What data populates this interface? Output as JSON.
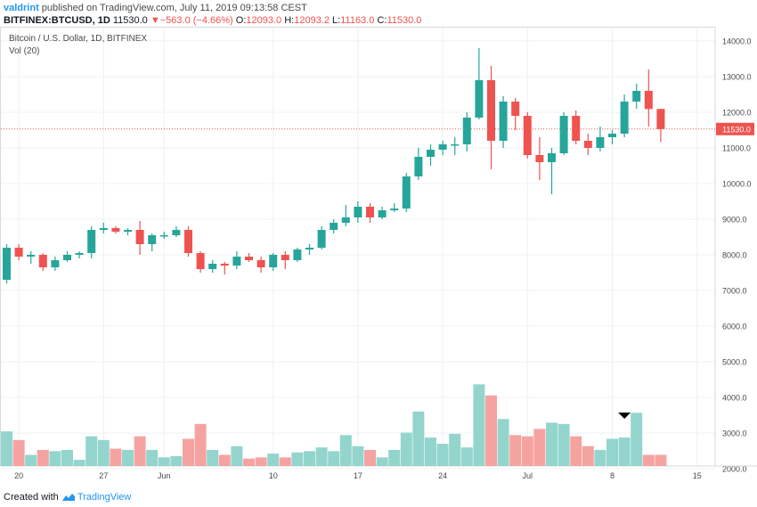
{
  "header": {
    "author": "valdrint",
    "published": "published on TradingView.com, July 11, 2019 09:13:58 CEST",
    "symbol": "BITFINEX:BTCUSD, 1D",
    "last": "11530.0",
    "change": "−563.0 (−4.66%)",
    "o_label": "O:",
    "o_value": "12093.0",
    "h_label": "H:",
    "h_value": "12093.2",
    "l_label": "L:",
    "l_value": "11163.0",
    "c_label": "C:",
    "c_value": "11530.0"
  },
  "legend": {
    "title": "Bitcoin / U.S. Dollar, 1D, BITFINEX",
    "volume": "Vol (20)"
  },
  "footer": {
    "created_with": "Created with",
    "brand": "TradingView"
  },
  "colors": {
    "up": "#26a69a",
    "down": "#ef5350",
    "vol_up": "#93d5cd",
    "vol_down": "#f5a3a1",
    "grid": "#edf0f5",
    "axis_text": "#4a4a4a",
    "price_line": "#ef5350",
    "marker": "#000000"
  },
  "chart_data": {
    "type": "candlestick",
    "title": "Bitcoin / U.S. Dollar, 1D, BITFINEX",
    "price_range": [
      6000,
      14400
    ],
    "volume_range": [
      1200,
      5700
    ],
    "y_ticks": [
      14000,
      13000,
      12000,
      11000,
      10000,
      9000,
      8000,
      7000,
      6000,
      5000,
      4000,
      3000,
      2000
    ],
    "y_tick_labels": [
      "14000.0",
      "13000.0",
      "12000.0",
      "11000.0",
      "10000.0",
      "9000.0",
      "8000.0",
      "7000.0",
      "6000.0",
      "5000.0",
      "4000.0",
      "3000.0",
      "2000.0"
    ],
    "x_ticks": [
      {
        "index": 1,
        "label": "20"
      },
      {
        "index": 8,
        "label": "27"
      },
      {
        "index": 13,
        "label": "Jun"
      },
      {
        "index": 22,
        "label": "10"
      },
      {
        "index": 29,
        "label": "17"
      },
      {
        "index": 36,
        "label": "24"
      },
      {
        "index": 43,
        "label": "Jul"
      },
      {
        "index": 50,
        "label": "8"
      },
      {
        "index": 57,
        "label": "15"
      }
    ],
    "last_price": 11530,
    "last_price_label": "11530.0",
    "marker_index": 51,
    "candles": [
      {
        "o": 7300,
        "h": 8300,
        "l": 7200,
        "c": 8200,
        "v": 2600
      },
      {
        "o": 8200,
        "h": 8300,
        "l": 7850,
        "c": 7950,
        "v": 2250
      },
      {
        "o": 7950,
        "h": 8100,
        "l": 7750,
        "c": 8000,
        "v": 1650
      },
      {
        "o": 8000,
        "h": 8050,
        "l": 7550,
        "c": 7650,
        "v": 1850
      },
      {
        "o": 7650,
        "h": 7950,
        "l": 7550,
        "c": 7850,
        "v": 1800
      },
      {
        "o": 7850,
        "h": 8100,
        "l": 7800,
        "c": 8000,
        "v": 1850
      },
      {
        "o": 8000,
        "h": 8100,
        "l": 7900,
        "c": 8050,
        "v": 1450
      },
      {
        "o": 8050,
        "h": 8800,
        "l": 7900,
        "c": 8700,
        "v": 2400
      },
      {
        "o": 8700,
        "h": 8900,
        "l": 8600,
        "c": 8750,
        "v": 2250
      },
      {
        "o": 8750,
        "h": 8800,
        "l": 8600,
        "c": 8650,
        "v": 1900
      },
      {
        "o": 8650,
        "h": 8750,
        "l": 8550,
        "c": 8700,
        "v": 1850
      },
      {
        "o": 8700,
        "h": 8950,
        "l": 8000,
        "c": 8300,
        "v": 2400
      },
      {
        "o": 8300,
        "h": 8600,
        "l": 8100,
        "c": 8550,
        "v": 1850
      },
      {
        "o": 8550,
        "h": 8650,
        "l": 8450,
        "c": 8550,
        "v": 1550
      },
      {
        "o": 8550,
        "h": 8800,
        "l": 8500,
        "c": 8700,
        "v": 1600
      },
      {
        "o": 8700,
        "h": 8800,
        "l": 7950,
        "c": 8050,
        "v": 2300
      },
      {
        "o": 8050,
        "h": 8100,
        "l": 7500,
        "c": 7600,
        "v": 2900
      },
      {
        "o": 7600,
        "h": 7850,
        "l": 7500,
        "c": 7750,
        "v": 1850
      },
      {
        "o": 7750,
        "h": 7800,
        "l": 7450,
        "c": 7700,
        "v": 1650
      },
      {
        "o": 7700,
        "h": 8100,
        "l": 7600,
        "c": 7950,
        "v": 2000
      },
      {
        "o": 7950,
        "h": 8050,
        "l": 7800,
        "c": 7850,
        "v": 1500
      },
      {
        "o": 7850,
        "h": 7950,
        "l": 7500,
        "c": 7650,
        "v": 1550
      },
      {
        "o": 7650,
        "h": 8050,
        "l": 7550,
        "c": 8000,
        "v": 1700
      },
      {
        "o": 8000,
        "h": 8100,
        "l": 7600,
        "c": 7850,
        "v": 1550
      },
      {
        "o": 7850,
        "h": 8200,
        "l": 7800,
        "c": 8150,
        "v": 1750
      },
      {
        "o": 8150,
        "h": 8300,
        "l": 8000,
        "c": 8200,
        "v": 1800
      },
      {
        "o": 8200,
        "h": 8800,
        "l": 8150,
        "c": 8700,
        "v": 1950
      },
      {
        "o": 8700,
        "h": 9000,
        "l": 8600,
        "c": 8900,
        "v": 1800
      },
      {
        "o": 8900,
        "h": 9400,
        "l": 8800,
        "c": 9050,
        "v": 2450
      },
      {
        "o": 9050,
        "h": 9500,
        "l": 8900,
        "c": 9350,
        "v": 2000
      },
      {
        "o": 9350,
        "h": 9450,
        "l": 8900,
        "c": 9050,
        "v": 1850
      },
      {
        "o": 9050,
        "h": 9350,
        "l": 9000,
        "c": 9250,
        "v": 1550
      },
      {
        "o": 9250,
        "h": 9450,
        "l": 9200,
        "c": 9300,
        "v": 1850
      },
      {
        "o": 9300,
        "h": 10300,
        "l": 9200,
        "c": 10200,
        "v": 2550
      },
      {
        "o": 10200,
        "h": 11000,
        "l": 10100,
        "c": 10750,
        "v": 3400
      },
      {
        "o": 10750,
        "h": 11100,
        "l": 10500,
        "c": 10950,
        "v": 2350
      },
      {
        "o": 10950,
        "h": 11200,
        "l": 10800,
        "c": 11100,
        "v": 2100
      },
      {
        "o": 11100,
        "h": 11300,
        "l": 10800,
        "c": 11100,
        "v": 2500
      },
      {
        "o": 11100,
        "h": 12000,
        "l": 10900,
        "c": 11850,
        "v": 1950
      },
      {
        "o": 11850,
        "h": 13800,
        "l": 11800,
        "c": 12900,
        "v": 4500
      },
      {
        "o": 12900,
        "h": 13300,
        "l": 10400,
        "c": 11200,
        "v": 4050
      },
      {
        "o": 11200,
        "h": 12450,
        "l": 11000,
        "c": 12300,
        "v": 3100
      },
      {
        "o": 12300,
        "h": 12400,
        "l": 11500,
        "c": 11900,
        "v": 2450
      },
      {
        "o": 11900,
        "h": 12000,
        "l": 10700,
        "c": 10800,
        "v": 2400
      },
      {
        "o": 10800,
        "h": 11300,
        "l": 10100,
        "c": 10600,
        "v": 2700
      },
      {
        "o": 10600,
        "h": 11000,
        "l": 9700,
        "c": 10850,
        "v": 2950
      },
      {
        "o": 10850,
        "h": 12000,
        "l": 10800,
        "c": 11900,
        "v": 2900
      },
      {
        "o": 11900,
        "h": 12050,
        "l": 11100,
        "c": 11200,
        "v": 2400
      },
      {
        "o": 11200,
        "h": 11400,
        "l": 10800,
        "c": 11000,
        "v": 2000
      },
      {
        "o": 11000,
        "h": 11600,
        "l": 10900,
        "c": 11300,
        "v": 1850
      },
      {
        "o": 11300,
        "h": 11500,
        "l": 11100,
        "c": 11400,
        "v": 2300
      },
      {
        "o": 11400,
        "h": 12500,
        "l": 11300,
        "c": 12300,
        "v": 2350
      },
      {
        "o": 12300,
        "h": 12800,
        "l": 12100,
        "c": 12600,
        "v": 3350
      },
      {
        "o": 12600,
        "h": 13200,
        "l": 11600,
        "c": 12093,
        "v": 1650
      },
      {
        "o": 12093,
        "h": 12093.2,
        "l": 11163,
        "c": 11530,
        "v": 1650
      }
    ]
  }
}
